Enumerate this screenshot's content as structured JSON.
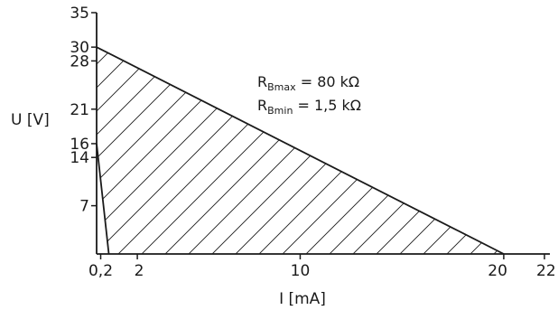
{
  "chart_data": {
    "type": "area",
    "xlabel": "I [mA]",
    "ylabel": "U [V]",
    "xlim": [
      0,
      22
    ],
    "ylim": [
      0,
      35
    ],
    "x_ticks": [
      {
        "value": 0.2,
        "label": "0,2"
      },
      {
        "value": 2,
        "label": "2"
      },
      {
        "value": 10,
        "label": "10"
      },
      {
        "value": 20,
        "label": "20"
      },
      {
        "value": 22,
        "label": "22"
      }
    ],
    "y_ticks": [
      {
        "value": 7,
        "label": "7"
      },
      {
        "value": 14,
        "label": "14"
      },
      {
        "value": 16,
        "label": "16"
      },
      {
        "value": 21,
        "label": "21"
      },
      {
        "value": 28,
        "label": "28"
      },
      {
        "value": 30,
        "label": "30"
      },
      {
        "value": 35,
        "label": "35"
      }
    ],
    "region": {
      "fill": "hatched",
      "boundary": [
        {
          "x": 0,
          "y": 30
        },
        {
          "x": 20,
          "y": 0
        },
        {
          "x": 0.6,
          "y": 0
        },
        {
          "x": 0,
          "y": 16
        }
      ]
    },
    "lines": [
      {
        "x": [
          0,
          20
        ],
        "y": [
          30,
          0
        ]
      },
      {
        "x": [
          0,
          0.6
        ],
        "y": [
          16,
          0
        ]
      }
    ],
    "annotations": [
      {
        "main": "R",
        "sub": "Bmax",
        "rest": " = 80 kΩ"
      },
      {
        "main": "R",
        "sub": "Bmin",
        "rest": " = 1,5 kΩ"
      }
    ]
  }
}
